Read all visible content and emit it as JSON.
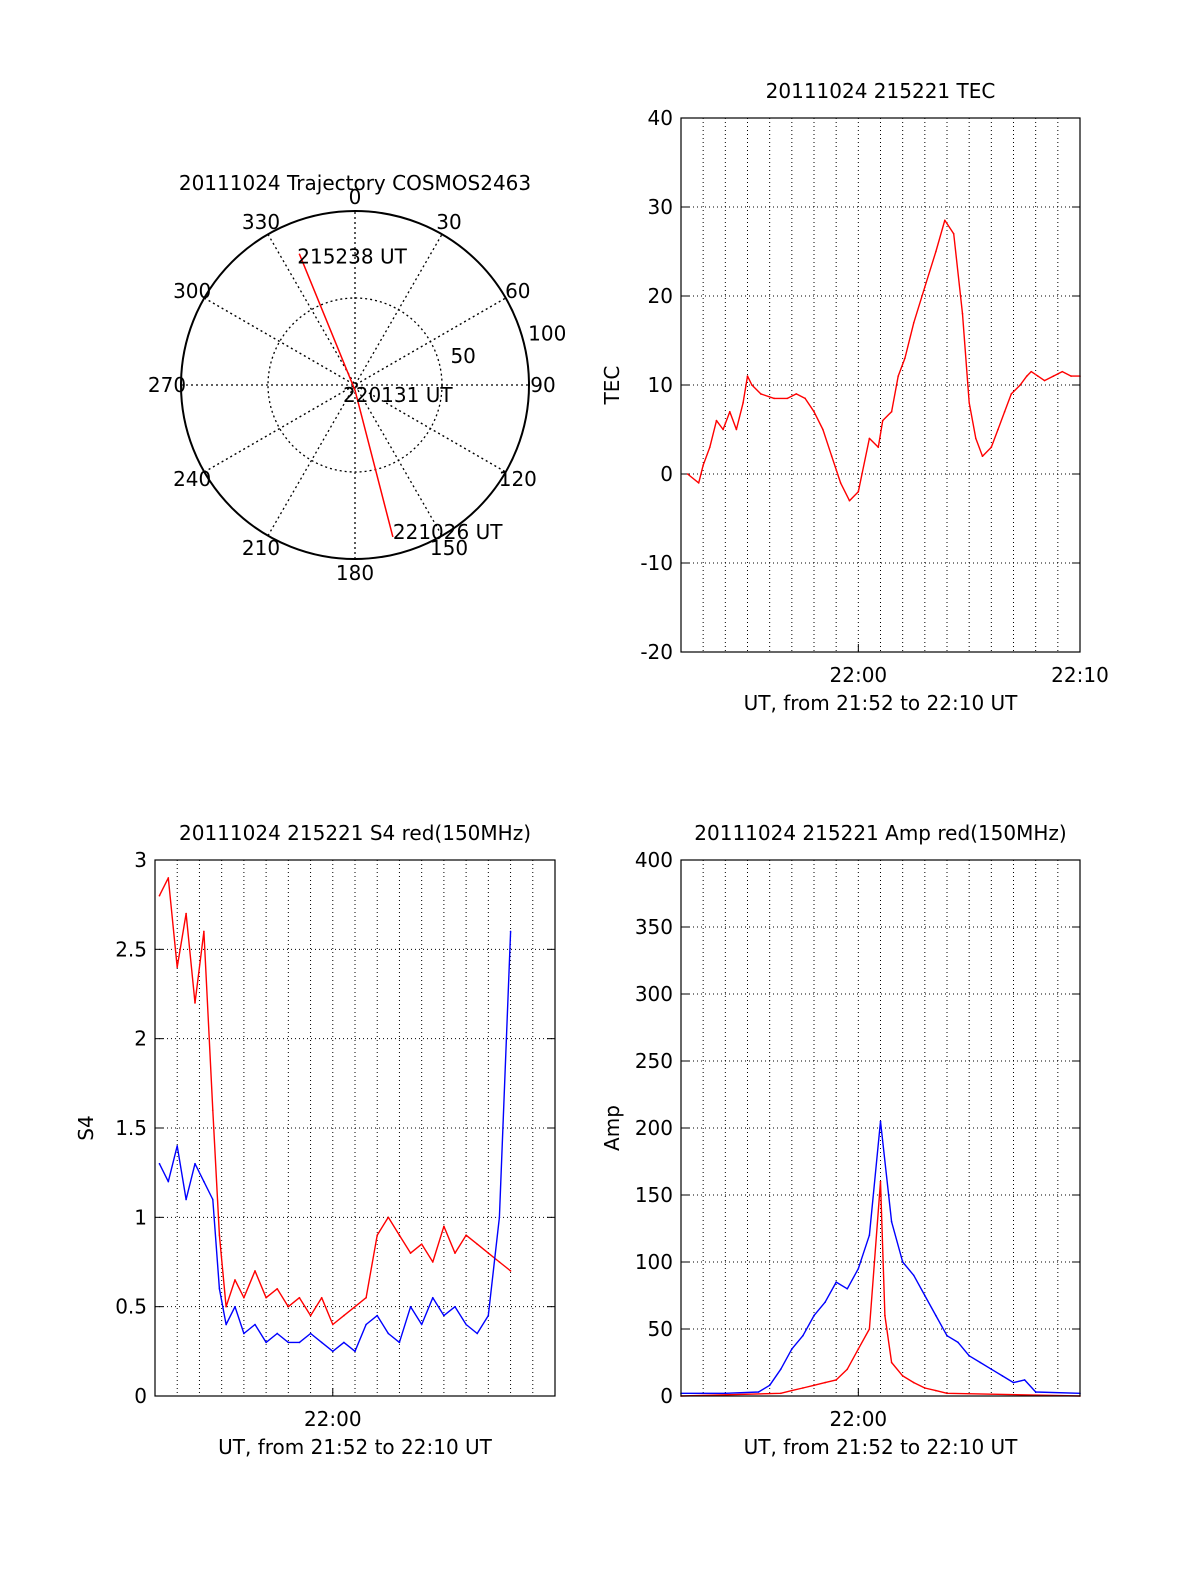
{
  "colors": {
    "red": "#ff0000",
    "blue": "#0000ff",
    "axis": "#000000",
    "grid": "#000000"
  },
  "chart_data": [
    {
      "id": "trajectory",
      "type": "polar",
      "title": "20111024 Trajectory COSMOS2463",
      "azimuth_labels": [
        {
          "deg": 0,
          "label": "0"
        },
        {
          "deg": 30,
          "label": "30"
        },
        {
          "deg": 60,
          "label": "60"
        },
        {
          "deg": 90,
          "label": "90"
        },
        {
          "deg": 120,
          "label": "120"
        },
        {
          "deg": 150,
          "label": "150"
        },
        {
          "deg": 180,
          "label": "180"
        },
        {
          "deg": 210,
          "label": "210"
        },
        {
          "deg": 240,
          "label": "240"
        },
        {
          "deg": 270,
          "label": "270"
        },
        {
          "deg": 300,
          "label": "300"
        },
        {
          "deg": 330,
          "label": "330"
        }
      ],
      "radial_labels": [
        {
          "value": 50,
          "label": "50"
        },
        {
          "value": 100,
          "label": "100"
        }
      ],
      "rmax": 100,
      "track": {
        "color": "#ff0000",
        "points": [
          {
            "az": 337,
            "r": 82,
            "label": "215238 UT"
          },
          {
            "az": 180,
            "r": 3,
            "label": "220131 UT"
          },
          {
            "az": 166,
            "r": 90,
            "label": "221026 UT"
          }
        ]
      }
    },
    {
      "id": "tec",
      "type": "line",
      "title": "20111024 215221 TEC",
      "ylabel": "TEC",
      "xlabel": "UT, from 21:52 to 22:10 UT",
      "xlim": [
        0,
        18
      ],
      "ylim": [
        -20,
        40
      ],
      "yticks": [
        "-20",
        "-10",
        "0",
        "10",
        "20",
        "30",
        "40"
      ],
      "xticks": [
        {
          "x": 8,
          "label": "22:00"
        },
        {
          "x": 18,
          "label": "22:10"
        }
      ],
      "series": [
        {
          "color": "#ff0000",
          "x": [
            0.3,
            0.8,
            1.0,
            1.3,
            1.6,
            1.9,
            2.2,
            2.5,
            2.8,
            3.0,
            3.2,
            3.6,
            4.2,
            4.8,
            5.2,
            5.6,
            6.0,
            6.4,
            6.8,
            7.2,
            7.6,
            8.0,
            8.5,
            8.9,
            9.1,
            9.5,
            9.8,
            10.1,
            10.5,
            11.0,
            11.5,
            11.9,
            12.3,
            12.7,
            13.0,
            13.3,
            13.6,
            14.0,
            14.3,
            14.6,
            14.9,
            15.3,
            15.6,
            15.8,
            16.1,
            16.4,
            16.8,
            17.2,
            17.6,
            18.0
          ],
          "y": [
            0,
            -1,
            1,
            3,
            6,
            5,
            7,
            5,
            8,
            11,
            10,
            9,
            8.5,
            8.5,
            9,
            8.5,
            7,
            5,
            2,
            -1,
            -3,
            -2,
            4,
            3,
            6,
            7,
            11,
            13,
            17,
            21,
            25,
            28.5,
            27,
            18,
            8,
            4,
            2,
            3,
            5,
            7,
            9,
            10,
            11,
            11.5,
            11,
            10.5,
            11,
            11.5,
            11,
            11
          ]
        }
      ]
    },
    {
      "id": "s4",
      "type": "line",
      "title": "20111024 215221 S4 red(150MHz)",
      "ylabel": "S4",
      "xlabel": "UT, from 21:52 to 22:10 UT",
      "xlim": [
        0,
        18
      ],
      "ylim": [
        0,
        3
      ],
      "yticks": [
        "0",
        "0.5",
        "1",
        "1.5",
        "2",
        "2.5",
        "3"
      ],
      "xticks": [
        {
          "x": 8,
          "label": "22:00"
        }
      ],
      "series": [
        {
          "color": "#ff0000",
          "x": [
            0.2,
            0.6,
            1.0,
            1.4,
            1.8,
            2.2,
            2.6,
            2.9,
            3.2,
            3.6,
            4.0,
            4.5,
            5.0,
            5.5,
            6.0,
            6.5,
            7.0,
            7.5,
            8.0,
            8.5,
            9.0,
            9.5,
            10.0,
            10.5,
            11.0,
            11.5,
            12.0,
            12.5,
            13.0,
            13.5,
            14.0,
            14.5,
            15.0,
            15.5,
            16.0
          ],
          "y": [
            2.8,
            2.9,
            2.4,
            2.7,
            2.2,
            2.6,
            1.6,
            0.9,
            0.5,
            0.65,
            0.55,
            0.7,
            0.55,
            0.6,
            0.5,
            0.55,
            0.45,
            0.55,
            0.4,
            0.45,
            0.5,
            0.55,
            0.9,
            1.0,
            0.9,
            0.8,
            0.85,
            0.75,
            0.95,
            0.8,
            0.9,
            0.85,
            0.8,
            0.75,
            0.7
          ]
        },
        {
          "color": "#0000ff",
          "x": [
            0.2,
            0.6,
            1.0,
            1.4,
            1.8,
            2.2,
            2.6,
            2.9,
            3.2,
            3.6,
            4.0,
            4.5,
            5.0,
            5.5,
            6.0,
            6.5,
            7.0,
            7.5,
            8.0,
            8.5,
            9.0,
            9.5,
            10.0,
            10.5,
            11.0,
            11.5,
            12.0,
            12.5,
            13.0,
            13.5,
            14.0,
            14.5,
            15.0,
            15.5,
            16.0
          ],
          "y": [
            1.3,
            1.2,
            1.4,
            1.1,
            1.3,
            1.2,
            1.1,
            0.6,
            0.4,
            0.5,
            0.35,
            0.4,
            0.3,
            0.35,
            0.3,
            0.3,
            0.35,
            0.3,
            0.25,
            0.3,
            0.25,
            0.4,
            0.45,
            0.35,
            0.3,
            0.5,
            0.4,
            0.55,
            0.45,
            0.5,
            0.4,
            0.35,
            0.45,
            1.0,
            2.6
          ]
        }
      ]
    },
    {
      "id": "amp",
      "type": "line",
      "title": "20111024 215221 Amp red(150MHz)",
      "ylabel": "Amp",
      "xlabel": "UT, from 21:52 to 22:10 UT",
      "xlim": [
        0,
        18
      ],
      "ylim": [
        0,
        400
      ],
      "yticks": [
        "0",
        "50",
        "100",
        "150",
        "200",
        "250",
        "300",
        "350",
        "400"
      ],
      "xticks": [
        {
          "x": 8,
          "label": "22:00"
        }
      ],
      "series": [
        {
          "color": "#0000ff",
          "x": [
            0,
            2,
            3.5,
            4.0,
            4.5,
            5.0,
            5.5,
            6.0,
            6.5,
            7.0,
            7.5,
            8.0,
            8.5,
            9.0,
            9.5,
            10.0,
            10.5,
            11.0,
            11.5,
            12.0,
            12.5,
            13.0,
            13.5,
            14.0,
            14.5,
            15.0,
            15.5,
            16.0,
            18.0
          ],
          "y": [
            2,
            2,
            3,
            8,
            20,
            35,
            45,
            60,
            70,
            85,
            80,
            95,
            120,
            205,
            130,
            100,
            90,
            75,
            60,
            45,
            40,
            30,
            25,
            20,
            15,
            10,
            12,
            3,
            2
          ]
        },
        {
          "color": "#ff0000",
          "x": [
            0,
            4.5,
            5.0,
            5.5,
            6.0,
            6.5,
            7.0,
            7.5,
            8.0,
            8.5,
            9.0,
            9.2,
            9.5,
            10.0,
            10.5,
            11.0,
            11.5,
            12.0,
            18.0
          ],
          "y": [
            0,
            2,
            4,
            6,
            8,
            10,
            12,
            20,
            35,
            50,
            160,
            60,
            25,
            15,
            10,
            6,
            4,
            2,
            0
          ]
        }
      ]
    }
  ]
}
